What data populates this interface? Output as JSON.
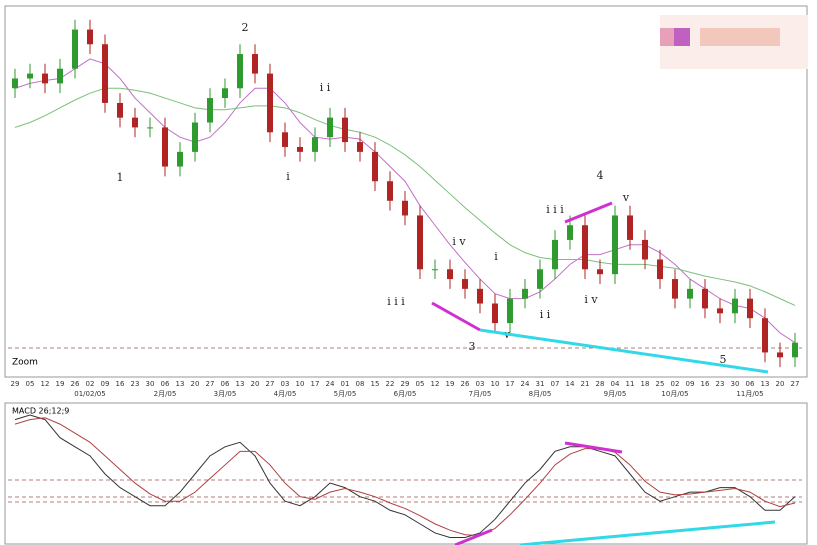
{
  "chart_data": [
    {
      "type": "candlestick",
      "categories": [
        "29",
        "05",
        "12",
        "19",
        "26",
        "02",
        "09",
        "16",
        "23",
        "30",
        "06",
        "13",
        "20",
        "27",
        "06",
        "13",
        "20",
        "27",
        "03",
        "10",
        "17",
        "24",
        "01",
        "08",
        "15",
        "22",
        "29",
        "05",
        "12",
        "19",
        "26",
        "03",
        "10",
        "17",
        "24",
        "31",
        "07",
        "14",
        "21",
        "28",
        "04",
        "11",
        "18",
        "25",
        "02",
        "09",
        "16",
        "23",
        "30",
        "06",
        "13",
        "20",
        "27"
      ],
      "month_labels": [
        null,
        null,
        null,
        null,
        null,
        "01/02/05",
        null,
        null,
        null,
        null,
        "2月/05",
        null,
        null,
        null,
        "3月/05",
        null,
        null,
        null,
        "4月/05",
        null,
        null,
        null,
        "5月/05",
        null,
        null,
        null,
        "6月/05",
        null,
        null,
        null,
        null,
        "7月/05",
        null,
        null,
        null,
        "8月/05",
        null,
        null,
        null,
        null,
        "9月/05",
        null,
        null,
        null,
        "10月/05",
        null,
        null,
        null,
        null,
        "11月/05",
        null,
        null,
        null
      ],
      "open": [
        290,
        300,
        305,
        295,
        310,
        350,
        335,
        275,
        260,
        250,
        250,
        210,
        225,
        255,
        280,
        290,
        325,
        305,
        245,
        230,
        225,
        240,
        260,
        235,
        225,
        195,
        175,
        160,
        105,
        105,
        95,
        85,
        70,
        50,
        75,
        85,
        105,
        135,
        150,
        105,
        100,
        160,
        135,
        115,
        95,
        75,
        85,
        65,
        60,
        75,
        55,
        20,
        15
      ],
      "high": [
        310,
        315,
        315,
        320,
        360,
        360,
        345,
        285,
        270,
        260,
        260,
        235,
        265,
        290,
        300,
        335,
        335,
        315,
        255,
        240,
        250,
        270,
        270,
        245,
        235,
        205,
        185,
        170,
        115,
        115,
        105,
        95,
        80,
        85,
        95,
        115,
        145,
        160,
        160,
        115,
        170,
        170,
        145,
        125,
        105,
        95,
        95,
        75,
        85,
        85,
        65,
        30,
        40
      ],
      "low": [
        280,
        290,
        285,
        285,
        300,
        325,
        265,
        250,
        240,
        240,
        200,
        200,
        215,
        245,
        270,
        280,
        295,
        235,
        220,
        215,
        215,
        230,
        225,
        215,
        185,
        165,
        150,
        95,
        95,
        85,
        75,
        60,
        40,
        40,
        65,
        75,
        95,
        125,
        95,
        90,
        90,
        125,
        105,
        85,
        65,
        65,
        55,
        50,
        50,
        45,
        10,
        5,
        5
      ],
      "close": [
        300,
        305,
        295,
        310,
        350,
        335,
        275,
        260,
        250,
        250,
        210,
        225,
        255,
        280,
        290,
        325,
        305,
        245,
        230,
        225,
        240,
        260,
        235,
        225,
        195,
        175,
        160,
        105,
        105,
        95,
        85,
        70,
        50,
        75,
        85,
        105,
        135,
        150,
        105,
        100,
        160,
        135,
        115,
        95,
        75,
        85,
        65,
        60,
        75,
        55,
        20,
        15,
        30
      ],
      "up_color": "#2f9a2f",
      "down_color": "#b02424",
      "moving_averages": [
        {
          "color": "#c070c8",
          "values": [
            290,
            295,
            298,
            300,
            310,
            320,
            315,
            300,
            280,
            265,
            250,
            240,
            235,
            240,
            255,
            275,
            290,
            290,
            275,
            255,
            240,
            238,
            240,
            238,
            225,
            210,
            195,
            170,
            150,
            130,
            112,
            95,
            80,
            75,
            75,
            82,
            95,
            110,
            120,
            120,
            125,
            130,
            130,
            122,
            110,
            95,
            85,
            75,
            68,
            65,
            55,
            40,
            30
          ]
        },
        {
          "color": "#7cbf7c",
          "values": [
            250,
            255,
            262,
            270,
            278,
            285,
            290,
            290,
            288,
            285,
            280,
            275,
            270,
            268,
            268,
            270,
            272,
            272,
            270,
            265,
            258,
            252,
            248,
            245,
            240,
            232,
            222,
            210,
            196,
            182,
            168,
            155,
            142,
            130,
            122,
            117,
            115,
            115,
            115,
            112,
            110,
            110,
            110,
            108,
            106,
            102,
            98,
            95,
            92,
            88,
            82,
            75,
            68
          ]
        }
      ],
      "ylim": [
        0,
        370
      ],
      "annotations": [
        "2",
        "1",
        "i i",
        "i",
        "i v",
        "i i i",
        "3",
        "i",
        "v",
        "i i",
        "i i i",
        "4",
        "v",
        "i v",
        "5"
      ],
      "zoom_label": "Zoom"
    },
    {
      "type": "line",
      "title": "MACD 26;12;9",
      "series": [
        {
          "color": "#333333",
          "values": [
            6,
            6.5,
            6,
            4,
            3,
            2,
            0,
            -1.5,
            -2.5,
            -3.5,
            -3.5,
            -2,
            0,
            2,
            3,
            3.5,
            2,
            -1,
            -3,
            -3.5,
            -2.5,
            -1,
            -1.5,
            -2.5,
            -3,
            -4,
            -4.5,
            -5.5,
            -6.5,
            -7,
            -7,
            -6.5,
            -5,
            -3,
            -1,
            0.5,
            2.5,
            3,
            3,
            2.5,
            2,
            0,
            -2,
            -3,
            -2.5,
            -2,
            -2,
            -1.5,
            -1.5,
            -2.5,
            -4,
            -4,
            -2.5
          ]
        },
        {
          "color": "#b04040",
          "values": [
            5.5,
            6,
            6.2,
            5.5,
            4.5,
            3.5,
            2,
            0.5,
            -1,
            -2.2,
            -3,
            -3,
            -2,
            -0.5,
            1,
            2.5,
            2.5,
            1,
            -1,
            -2.5,
            -2.8,
            -2,
            -1.6,
            -2,
            -2.5,
            -3.2,
            -3.8,
            -4.6,
            -5.5,
            -6.2,
            -6.7,
            -6.8,
            -6,
            -4.5,
            -2.8,
            -1,
            1,
            2.2,
            2.8,
            2.8,
            2.4,
            1,
            -0.8,
            -2,
            -2.3,
            -2.2,
            -2,
            -1.8,
            -1.6,
            -2,
            -3,
            -3.6,
            -3.2
          ]
        }
      ],
      "ylim": [
        -7.5,
        7.5
      ]
    }
  ]
}
